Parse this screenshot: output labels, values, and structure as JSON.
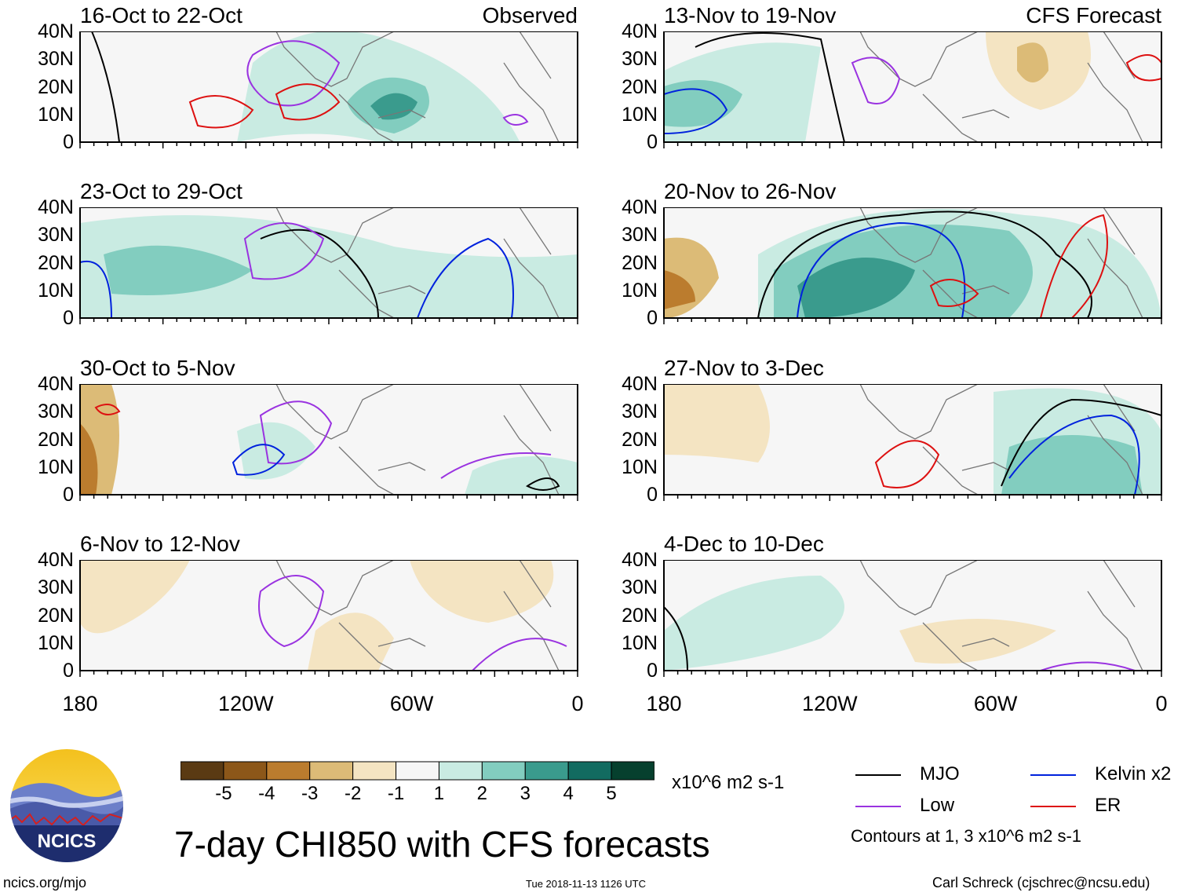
{
  "panels": [
    {
      "title": "16-Oct to 22-Oct",
      "source": "Observed"
    },
    {
      "title": "23-Oct to 29-Oct",
      "source": ""
    },
    {
      "title": "30-Oct to 5-Nov",
      "source": ""
    },
    {
      "title": "6-Nov to 12-Nov",
      "source": ""
    },
    {
      "title": "13-Nov to 19-Nov",
      "source": "CFS Forecast"
    },
    {
      "title": "20-Nov to 26-Nov",
      "source": ""
    },
    {
      "title": "27-Nov to 3-Dec",
      "source": ""
    },
    {
      "title": "4-Dec to 10-Dec",
      "source": ""
    }
  ],
  "y_labels": [
    "40N",
    "30N",
    "20N",
    "10N",
    "0"
  ],
  "x_labels": [
    "180",
    "120W",
    "60W",
    "0"
  ],
  "colorbar": {
    "ticks": [
      "-5",
      "-4",
      "-3",
      "-2",
      "-1",
      "1",
      "2",
      "3",
      "4",
      "5"
    ],
    "colors": [
      "#5a3a13",
      "#8c5719",
      "#bb7c2e",
      "#dcbb77",
      "#f4e4c2",
      "#f6f6f6",
      "#c9ebe2",
      "#82cdbf",
      "#3a9b8d",
      "#126b60",
      "#06402e"
    ],
    "units": "x10^6 m2 s-1"
  },
  "main_title": "7-day CHI850 with CFS forecasts",
  "legend": [
    {
      "label": "MJO",
      "color": "#000000"
    },
    {
      "label": "Kelvin x2",
      "color": "#0022dd"
    },
    {
      "label": "Low",
      "color": "#9a33e0"
    },
    {
      "label": "ER",
      "color": "#dd1111"
    }
  ],
  "contour_note": "Contours at 1, 3 x10^6 m2 s-1",
  "logo_text": "NCICS",
  "site_url": "ncics.org/mjo",
  "timestamp": "Tue 2018-11-13 1126 UTC",
  "credit": "Carl Schreck (cjschrec@ncsu.edu)"
}
